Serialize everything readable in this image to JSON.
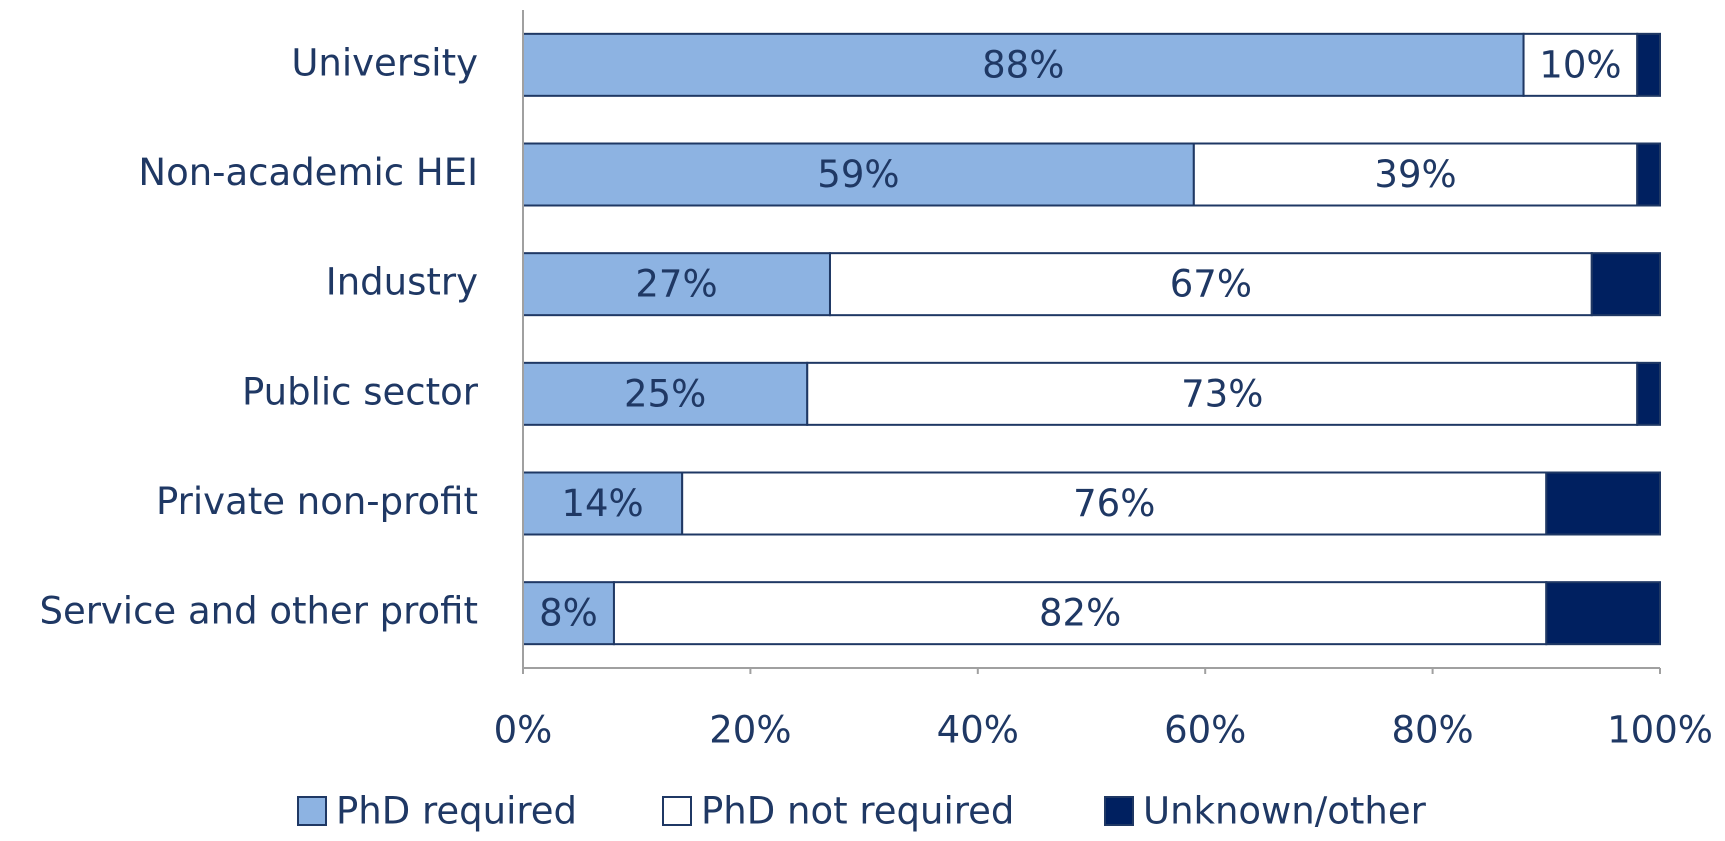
{
  "chart_data": {
    "type": "stacked-bar-horizontal",
    "categories": [
      "University",
      "Non-academic HEI",
      "Industry",
      "Public sector",
      "Private non-profit",
      "Service and other profit"
    ],
    "series": [
      {
        "name": "PhD required",
        "color": "#8db3e2",
        "values": [
          88,
          59,
          27,
          25,
          14,
          8
        ],
        "value_labels": [
          "88%",
          "59%",
          "27%",
          "25%",
          "14%",
          "8%"
        ]
      },
      {
        "name": "PhD not required",
        "color": "#ffffff",
        "values": [
          10,
          39,
          67,
          73,
          76,
          82
        ],
        "value_labels": [
          "10%",
          "39%",
          "67%",
          "73%",
          "76%",
          "82%"
        ]
      },
      {
        "name": "Unknown/other",
        "color": "#002060",
        "values": [
          2,
          2,
          6,
          2,
          10,
          10
        ]
      }
    ],
    "xlim": [
      0,
      100
    ],
    "xticks": [
      {
        "value": 0,
        "label": "0%"
      },
      {
        "value": 20,
        "label": "20%"
      },
      {
        "value": 40,
        "label": "40%"
      },
      {
        "value": 60,
        "label": "60%"
      },
      {
        "value": 80,
        "label": "80%"
      },
      {
        "value": 100,
        "label": "100%"
      }
    ],
    "legend": "bottom"
  }
}
